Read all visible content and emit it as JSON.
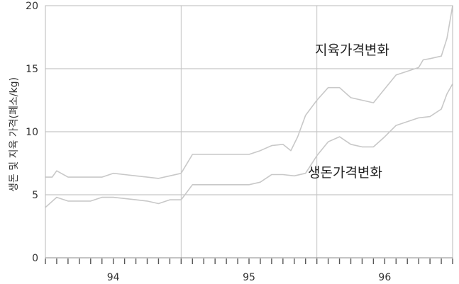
{
  "chart_data": {
    "type": "line",
    "title": "",
    "xlabel": "",
    "ylabel": "생돈 및 지육 가격(폐소/kg)",
    "xlim": [
      0,
      36
    ],
    "ylim": [
      0,
      20
    ],
    "yticks": [
      0,
      5,
      10,
      15,
      20
    ],
    "year_labels": [
      {
        "label": "94",
        "x": 6
      },
      {
        "label": "95",
        "x": 18
      },
      {
        "label": "96",
        "x": 30
      }
    ],
    "vertical_grid_x": [
      12,
      24
    ],
    "grid": true,
    "series": [
      {
        "name": "지육가격변화",
        "color": "#c8c8c8",
        "x": [
          0,
          0.6,
          1,
          2,
          3,
          4,
          5,
          6,
          7,
          8,
          9,
          10,
          11,
          12,
          13,
          14,
          15,
          16,
          17,
          18,
          19,
          20,
          21,
          21.7,
          22.3,
          23,
          24,
          25,
          26,
          27,
          28,
          29,
          30,
          31,
          32,
          33,
          33.4,
          34,
          35,
          35.5,
          36
        ],
        "values": [
          6.4,
          6.4,
          6.9,
          6.4,
          6.4,
          6.4,
          6.4,
          6.7,
          6.6,
          6.5,
          6.4,
          6.3,
          6.5,
          6.7,
          8.2,
          8.2,
          8.2,
          8.2,
          8.2,
          8.2,
          8.5,
          8.9,
          9.0,
          8.5,
          9.6,
          11.3,
          12.5,
          13.5,
          13.5,
          12.7,
          12.5,
          12.3,
          13.4,
          14.5,
          14.8,
          15.1,
          15.7,
          15.8,
          16.0,
          17.4,
          20.0
        ]
      },
      {
        "name": "생돈가격변화",
        "color": "#c8c8c8",
        "x": [
          0,
          1,
          2,
          3,
          4,
          5,
          6,
          7,
          8,
          9,
          10,
          11,
          12,
          13,
          14,
          15,
          16,
          17,
          18,
          19,
          20,
          21,
          22,
          23,
          24,
          25,
          26,
          27,
          28,
          29,
          30,
          31,
          32,
          33,
          34,
          35,
          35.5,
          36
        ],
        "values": [
          4.0,
          4.8,
          4.5,
          4.5,
          4.5,
          4.8,
          4.8,
          4.7,
          4.6,
          4.5,
          4.3,
          4.6,
          4.6,
          5.8,
          5.8,
          5.8,
          5.8,
          5.8,
          5.8,
          6.0,
          6.6,
          6.6,
          6.5,
          6.7,
          8.1,
          9.2,
          9.6,
          9.0,
          8.8,
          8.8,
          9.6,
          10.5,
          10.8,
          11.1,
          11.2,
          11.8,
          13.0,
          13.8
        ]
      }
    ],
    "annotations": [
      {
        "text": "지육가격변화",
        "series": 0
      },
      {
        "text": "생돈가격변화",
        "series": 1
      }
    ]
  }
}
